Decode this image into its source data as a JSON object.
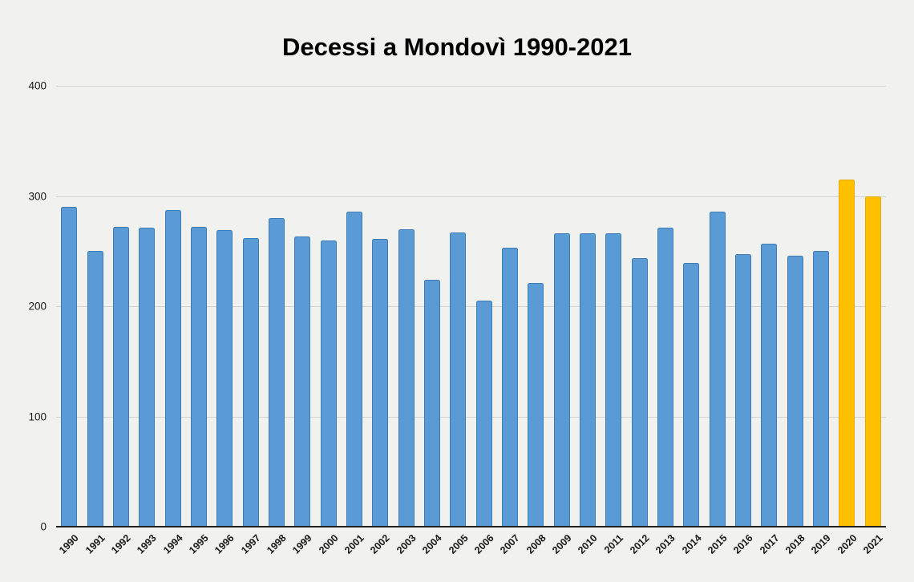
{
  "chart_data": {
    "type": "bar",
    "title": "Decessi a Mondovì 1990-2021",
    "xlabel": "",
    "ylabel": "",
    "categories": [
      "1990",
      "1991",
      "1992",
      "1993",
      "1994",
      "1995",
      "1996",
      "1997",
      "1998",
      "1999",
      "2000",
      "2001",
      "2002",
      "2003",
      "2004",
      "2005",
      "2006",
      "2007",
      "2008",
      "2009",
      "2010",
      "2011",
      "2012",
      "2013",
      "2014",
      "2015",
      "2016",
      "2017",
      "2018",
      "2019",
      "2020",
      "2021"
    ],
    "values": [
      290,
      250,
      272,
      271,
      287,
      272,
      269,
      262,
      280,
      263,
      260,
      286,
      261,
      270,
      224,
      267,
      205,
      253,
      221,
      266,
      266,
      266,
      244,
      271,
      239,
      286,
      247,
      257,
      246,
      250,
      315,
      300
    ],
    "highlight_categories": [
      "2020",
      "2021"
    ],
    "ylim": [
      0,
      400
    ],
    "yticks": [
      0,
      100,
      200,
      300,
      400
    ],
    "grid": true,
    "legend_position": "none",
    "colors": {
      "bar_fill": "#5B9BD5",
      "bar_border": "#3E7CB7",
      "highlight_fill": "#FFC000",
      "highlight_border": "#E9A900",
      "background": "#F1F1EF",
      "gridline": "#D2D2D0",
      "axis_line": "#222222",
      "label_text": "#1A1A1A",
      "title_text": "#000000"
    }
  }
}
